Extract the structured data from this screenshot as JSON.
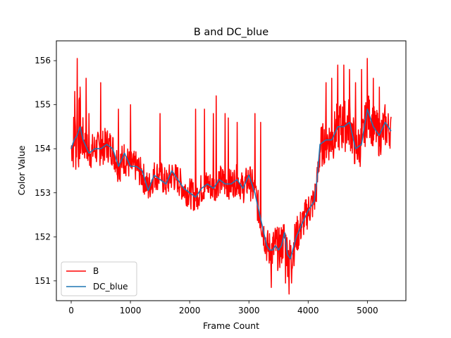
{
  "chart_data": {
    "type": "line",
    "title": "B and DC_blue",
    "xlabel": "Frame Count",
    "ylabel": "Color Value",
    "xlim": [
      -250,
      5650
    ],
    "ylim": [
      150.55,
      156.45
    ],
    "xticks": [
      0,
      1000,
      2000,
      3000,
      4000,
      5000
    ],
    "yticks": [
      151,
      152,
      153,
      154,
      155,
      156
    ],
    "legend_position": "lower-left",
    "grid": false,
    "series": [
      {
        "name": "B",
        "color": "#ff0000",
        "x": [
          0,
          50,
          100,
          150,
          200,
          300,
          400,
          500,
          600,
          700,
          800,
          900,
          1000,
          1100,
          1200,
          1300,
          1400,
          1500,
          1600,
          1700,
          1800,
          1900,
          2000,
          2100,
          2200,
          2300,
          2400,
          2500,
          2600,
          2700,
          2800,
          2900,
          3000,
          3100,
          3200,
          3300,
          3350,
          3400,
          3450,
          3500,
          3550,
          3600,
          3650,
          3700,
          3800,
          3900,
          4000,
          4100,
          4150,
          4200,
          4300,
          4400,
          4500,
          4600,
          4700,
          4800,
          4900,
          5000,
          5100,
          5200,
          5300,
          5400
        ],
        "values": [
          154.0,
          154.2,
          154.3,
          154.4,
          154.2,
          153.9,
          154.0,
          154.0,
          154.1,
          154.0,
          153.6,
          153.8,
          153.6,
          153.6,
          153.4,
          153.1,
          153.4,
          153.4,
          153.2,
          153.4,
          153.3,
          153.1,
          153.0,
          152.9,
          153.1,
          153.2,
          153.1,
          153.3,
          153.2,
          153.2,
          153.3,
          153.1,
          153.3,
          153.0,
          152.4,
          151.8,
          151.7,
          151.7,
          151.8,
          151.7,
          151.8,
          152.0,
          151.6,
          151.5,
          152.0,
          152.3,
          152.6,
          152.8,
          153.2,
          154.0,
          154.2,
          154.2,
          154.5,
          154.5,
          154.6,
          154.0,
          154.1,
          154.8,
          154.5,
          154.3,
          154.5,
          154.4
        ],
        "spread": [
          0.3,
          0.8,
          0.9,
          0.8,
          0.5,
          0.4,
          0.4,
          0.4,
          0.4,
          0.4,
          0.4,
          0.4,
          0.35,
          0.35,
          0.35,
          0.35,
          0.35,
          0.35,
          0.35,
          0.35,
          0.35,
          0.35,
          0.35,
          0.35,
          0.35,
          0.35,
          0.35,
          0.35,
          0.35,
          0.35,
          0.35,
          0.35,
          0.4,
          0.4,
          0.4,
          0.4,
          0.45,
          0.5,
          0.5,
          0.5,
          0.5,
          0.5,
          0.5,
          0.5,
          0.45,
          0.4,
          0.4,
          0.4,
          0.4,
          0.5,
          0.5,
          0.5,
          0.6,
          0.6,
          0.6,
          0.5,
          0.5,
          0.5,
          0.5,
          0.5,
          0.5,
          0.4
        ],
        "peaks": [
          [
            60,
            155.3
          ],
          [
            100,
            156.05
          ],
          [
            150,
            155.4
          ],
          [
            250,
            155.6
          ],
          [
            300,
            154.8
          ],
          [
            500,
            155.5
          ],
          [
            800,
            154.9
          ],
          [
            1000,
            155.0
          ],
          [
            1500,
            154.8
          ],
          [
            2100,
            154.9
          ],
          [
            2250,
            154.9
          ],
          [
            2400,
            154.8
          ],
          [
            2450,
            155.2
          ],
          [
            2600,
            154.8
          ],
          [
            2650,
            154.7
          ],
          [
            2800,
            154.6
          ],
          [
            3100,
            154.8
          ],
          [
            3200,
            154.6
          ],
          [
            4300,
            155.5
          ],
          [
            4400,
            155.6
          ],
          [
            4500,
            155.9
          ],
          [
            4600,
            155.9
          ],
          [
            4700,
            155.8
          ],
          [
            4800,
            155.5
          ],
          [
            4900,
            155.8
          ],
          [
            5000,
            156.05
          ],
          [
            5100,
            155.6
          ],
          [
            5200,
            155.4
          ],
          [
            5300,
            155.0
          ]
        ],
        "troughs": [
          [
            3380,
            150.85
          ],
          [
            3620,
            150.95
          ],
          [
            3680,
            150.7
          ],
          [
            3720,
            150.95
          ]
        ]
      },
      {
        "name": "DC_blue",
        "color": "#1f77b4",
        "x": [
          0,
          50,
          100,
          150,
          200,
          300,
          400,
          500,
          600,
          700,
          800,
          900,
          1000,
          1100,
          1200,
          1300,
          1400,
          1500,
          1600,
          1700,
          1800,
          1900,
          2000,
          2100,
          2200,
          2300,
          2400,
          2500,
          2600,
          2700,
          2800,
          2900,
          3000,
          3100,
          3200,
          3300,
          3350,
          3400,
          3450,
          3500,
          3550,
          3600,
          3650,
          3700,
          3800,
          3900,
          4000,
          4100,
          4150,
          4200,
          4300,
          4400,
          4500,
          4600,
          4700,
          4800,
          4900,
          5000,
          5100,
          5200,
          5300,
          5400
        ],
        "values": [
          154.0,
          154.2,
          154.3,
          154.5,
          154.2,
          153.9,
          154.0,
          154.0,
          154.1,
          154.0,
          153.6,
          153.9,
          153.6,
          153.6,
          153.5,
          153.05,
          153.4,
          153.3,
          153.2,
          153.5,
          153.3,
          153.1,
          153.0,
          152.9,
          153.1,
          153.2,
          153.1,
          153.3,
          153.2,
          153.2,
          153.3,
          153.1,
          153.4,
          153.0,
          152.4,
          151.8,
          151.7,
          151.7,
          151.8,
          151.7,
          151.8,
          152.1,
          151.6,
          151.5,
          152.0,
          152.3,
          152.6,
          152.8,
          153.3,
          154.1,
          154.2,
          154.2,
          154.5,
          154.5,
          154.6,
          154.0,
          154.1,
          154.9,
          154.5,
          154.3,
          154.6,
          154.4
        ]
      }
    ]
  }
}
